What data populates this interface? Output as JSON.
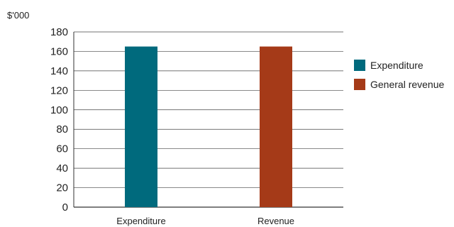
{
  "chart_data": {
    "type": "bar",
    "title": "",
    "ylabel": "$'000",
    "xlabel": "",
    "categories": [
      "Expenditure",
      "Revenue"
    ],
    "series": [
      {
        "name": "Expenditure",
        "color": "#006A7D",
        "values": [
          165,
          null
        ]
      },
      {
        "name": "General revenue",
        "color": "#A53A18",
        "values": [
          null,
          165
        ]
      }
    ],
    "ylim": [
      0,
      180
    ],
    "yticks": [
      0,
      20,
      40,
      60,
      80,
      100,
      120,
      140,
      160,
      180
    ],
    "grid": true,
    "legend_position": "right"
  }
}
